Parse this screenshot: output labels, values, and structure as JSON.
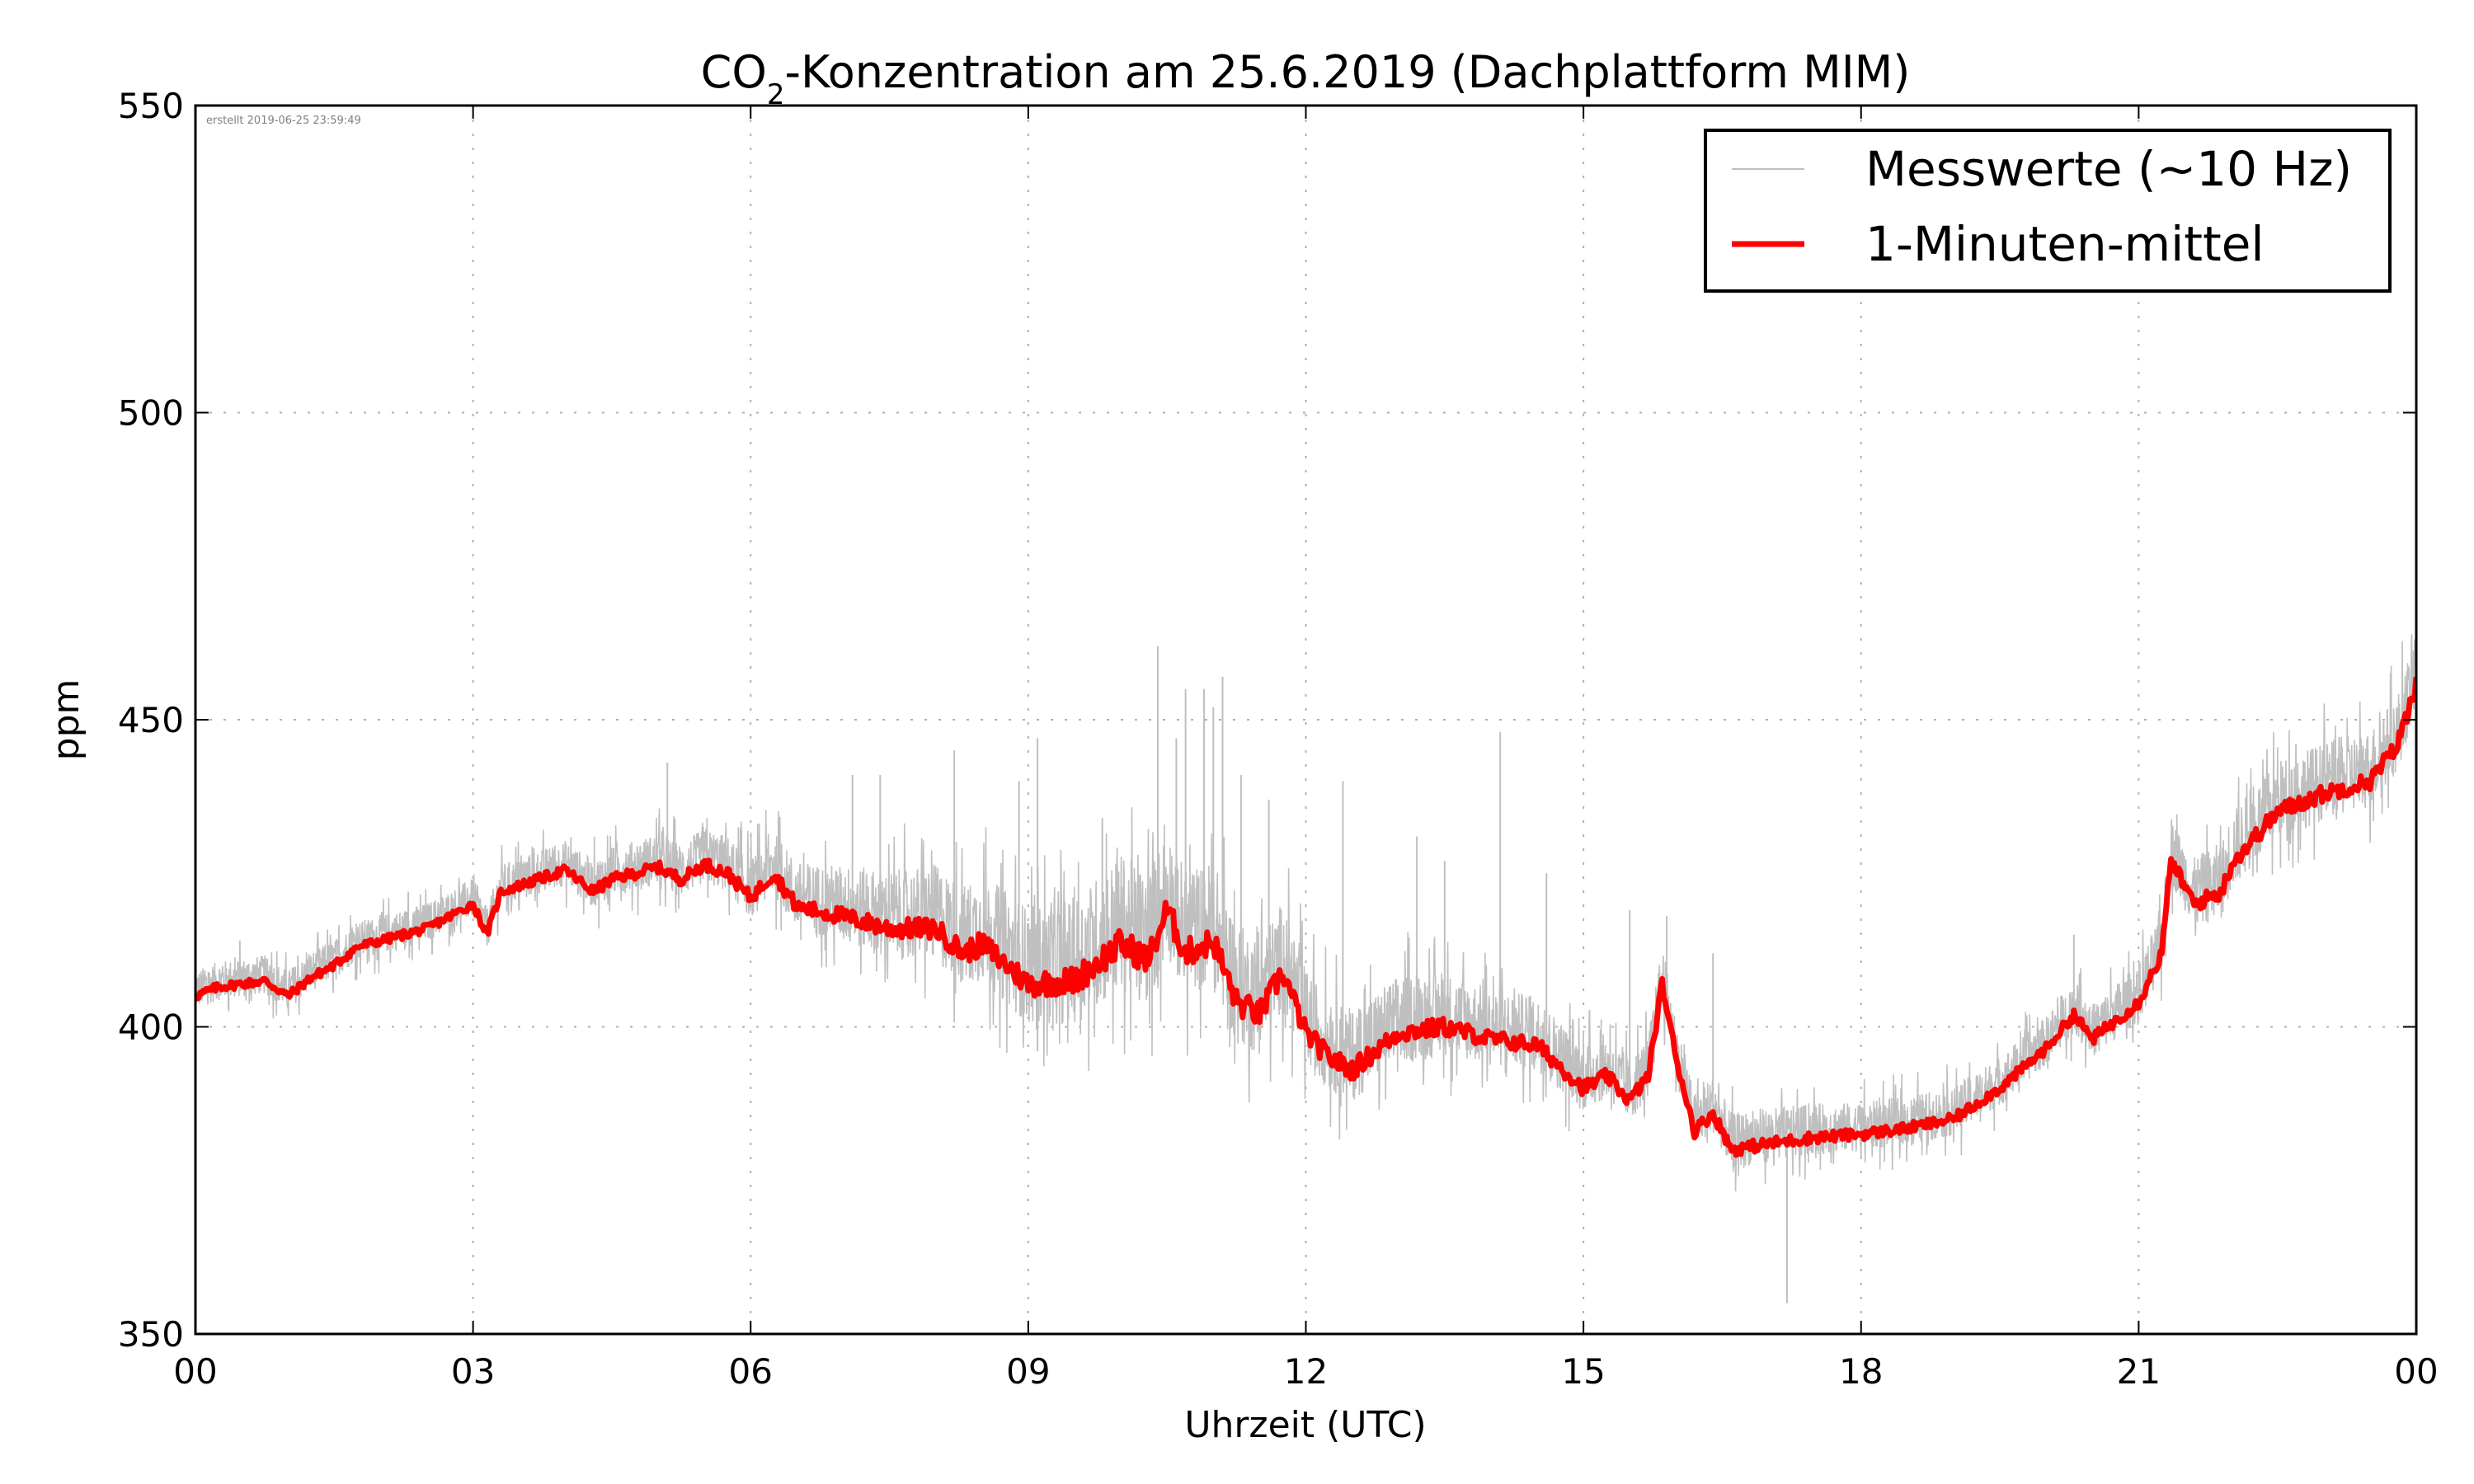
{
  "chart_data": {
    "type": "line",
    "title": "CO₂-Konzentration am 25.6.2019 (Dachplattform MIM)",
    "title_parts": {
      "pre": "CO",
      "sub": "2",
      "post": "-Konzentration am 25.6.2019 (Dachplattform MIM)"
    },
    "xlabel": "Uhrzeit (UTC)",
    "ylabel": "ppm",
    "xlim": [
      0,
      24
    ],
    "ylim": [
      350,
      550
    ],
    "x_unit": "hours UTC",
    "xticks": [
      0,
      3,
      6,
      9,
      12,
      15,
      18,
      21,
      24
    ],
    "xtick_labels": [
      "00",
      "03",
      "06",
      "09",
      "12",
      "15",
      "18",
      "21",
      "00"
    ],
    "yticks": [
      350,
      400,
      450,
      500,
      550
    ],
    "ytick_labels": [
      "350",
      "400",
      "450",
      "500",
      "550"
    ],
    "grid": true,
    "legend_position": "top-right",
    "annotation": "erstellt 2019-06-25 23:59:49",
    "series": [
      {
        "name": "Messwerte (~10 Hz)",
        "color": "#bfbfbf",
        "kind": "raw",
        "note": "high-frequency measurements scattered around the 1-minute mean",
        "spread_ppm": [
          [
            0,
            4
          ],
          [
            3,
            4
          ],
          [
            6,
            6
          ],
          [
            8,
            10
          ],
          [
            10,
            14
          ],
          [
            11.5,
            12
          ],
          [
            12,
            10
          ],
          [
            14,
            8
          ],
          [
            15,
            7
          ],
          [
            16,
            6
          ],
          [
            18,
            5
          ],
          [
            20,
            5
          ],
          [
            21,
            6
          ],
          [
            22,
            8
          ],
          [
            24,
            8
          ]
        ],
        "spikes": [
          [
            2.3,
            422
          ],
          [
            5.1,
            443
          ],
          [
            5.9,
            432
          ],
          [
            6.3,
            434
          ],
          [
            7.1,
            441
          ],
          [
            7.4,
            441
          ],
          [
            8.2,
            445
          ],
          [
            8.9,
            440
          ],
          [
            9.1,
            447
          ],
          [
            9.1,
            396
          ],
          [
            9.8,
            434
          ],
          [
            10.4,
            462
          ],
          [
            10.6,
            447
          ],
          [
            10.7,
            455
          ],
          [
            10.9,
            455
          ],
          [
            11.0,
            452
          ],
          [
            11.1,
            457
          ],
          [
            11.3,
            441
          ],
          [
            11.6,
            437
          ],
          [
            12.4,
            440
          ],
          [
            13.2,
            431
          ],
          [
            13.5,
            427
          ],
          [
            14.1,
            448
          ],
          [
            14.6,
            425
          ],
          [
            15.5,
            419
          ],
          [
            15.9,
            418
          ],
          [
            16.4,
            412
          ],
          [
            17.2,
            355
          ],
          [
            20.3,
            415
          ],
          [
            21.4,
            432
          ],
          [
            22.7,
            446
          ],
          [
            23.4,
            447
          ],
          [
            23.9,
            458
          ]
        ]
      },
      {
        "name": "1-Minuten-mittel",
        "color": "#ff0000",
        "kind": "mean",
        "x": [
          0,
          0.25,
          0.5,
          0.75,
          1.0,
          1.25,
          1.5,
          1.75,
          2.0,
          2.5,
          3.0,
          3.15,
          3.3,
          3.5,
          4.0,
          4.3,
          4.5,
          5.0,
          5.25,
          5.5,
          5.75,
          6.0,
          6.25,
          6.5,
          7.0,
          7.5,
          8.0,
          8.3,
          8.5,
          9.0,
          9.5,
          10.0,
          10.3,
          10.5,
          10.7,
          11.0,
          11.25,
          11.5,
          11.75,
          12.0,
          12.25,
          12.5,
          13.0,
          13.5,
          14.0,
          14.5,
          15.0,
          15.25,
          15.5,
          15.7,
          15.85,
          16.0,
          16.2,
          16.4,
          16.6,
          17.0,
          17.5,
          18.0,
          18.5,
          19.0,
          19.5,
          20.0,
          20.3,
          20.5,
          21.0,
          21.25,
          21.35,
          21.6,
          21.9,
          22.0,
          22.5,
          23.0,
          23.5,
          23.8,
          24.0
        ],
        "y": [
          405,
          406.5,
          407,
          407.5,
          405,
          408,
          410,
          413,
          414,
          416,
          420,
          415,
          422,
          423,
          425.5,
          422,
          424,
          426,
          424,
          426.5,
          425,
          421,
          425,
          419.5,
          418,
          416,
          416,
          412,
          413.5,
          407,
          407.5,
          413.5,
          411,
          419,
          412,
          414,
          404,
          402,
          409,
          399,
          395,
          393,
          399,
          400,
          398,
          397,
          390,
          392,
          388,
          392,
          407,
          395,
          383,
          386,
          380,
          381,
          382,
          382.5,
          383.5,
          385,
          390,
          396.5,
          402,
          398,
          404,
          412,
          427,
          420,
          422,
          426.5,
          435,
          438,
          440,
          446,
          456
        ]
      }
    ]
  }
}
